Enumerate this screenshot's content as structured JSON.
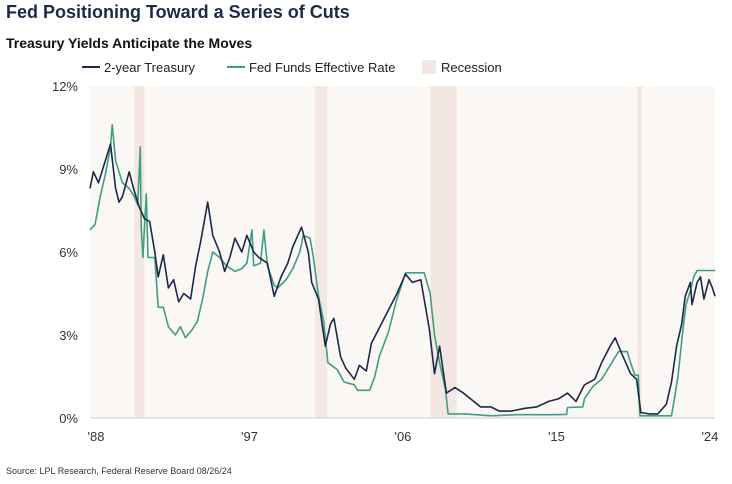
{
  "title": "Fed Positioning Toward a Series of Cuts",
  "subtitle": "Treasury Yields Anticipate the Moves",
  "source": "Source: LPL Research, Federal Reserve Board 08/26/24",
  "colors": {
    "treasury": "#1c2a4a",
    "fed_funds": "#3f9f82",
    "recession": "#f3e8e1",
    "plot_bg": "#fbf7f5"
  },
  "chart_data": {
    "type": "line",
    "title": "Fed Positioning Toward a Series of Cuts",
    "subtitle": "Treasury Yields Anticipate the Moves",
    "xlim": [
      1988,
      2024.65
    ],
    "ylim": [
      0,
      12
    ],
    "y_ticks": [
      {
        "value": 0,
        "label": "0%"
      },
      {
        "value": 3,
        "label": "3%"
      },
      {
        "value": 6,
        "label": "6%"
      },
      {
        "value": 9,
        "label": "9%"
      },
      {
        "value": 12,
        "label": "12%"
      }
    ],
    "x_ticks": [
      {
        "value": 1988,
        "label": "'88"
      },
      {
        "value": 1997,
        "label": "'97"
      },
      {
        "value": 2006,
        "label": "'06"
      },
      {
        "value": 2015,
        "label": "'15"
      },
      {
        "value": 2024,
        "label": "'24"
      }
    ],
    "grid": false,
    "legend": {
      "placement": "top",
      "items": [
        "2-year Treasury",
        "Fed Funds Effective Rate",
        "Recession"
      ]
    },
    "recessions": [
      [
        1990.6,
        1991.2
      ],
      [
        2001.2,
        2001.9
      ],
      [
        2007.95,
        2009.5
      ],
      [
        2020.1,
        2020.35
      ]
    ],
    "series": [
      {
        "name": "2-year Treasury",
        "points": [
          [
            1988.0,
            8.3
          ],
          [
            1988.2,
            8.9
          ],
          [
            1988.5,
            8.5
          ],
          [
            1988.8,
            9.1
          ],
          [
            1989.2,
            9.9
          ],
          [
            1989.5,
            8.3
          ],
          [
            1989.7,
            7.8
          ],
          [
            1989.9,
            8.0
          ],
          [
            1990.3,
            8.9
          ],
          [
            1990.6,
            8.2
          ],
          [
            1990.9,
            7.6
          ],
          [
            1991.2,
            7.2
          ],
          [
            1991.5,
            7.1
          ],
          [
            1991.8,
            6.0
          ],
          [
            1992.0,
            5.1
          ],
          [
            1992.3,
            5.9
          ],
          [
            1992.6,
            4.7
          ],
          [
            1992.9,
            5.0
          ],
          [
            1993.2,
            4.2
          ],
          [
            1993.5,
            4.5
          ],
          [
            1993.9,
            4.3
          ],
          [
            1994.2,
            5.5
          ],
          [
            1994.5,
            6.4
          ],
          [
            1994.9,
            7.8
          ],
          [
            1995.2,
            6.6
          ],
          [
            1995.6,
            6.0
          ],
          [
            1995.9,
            5.3
          ],
          [
            1996.2,
            5.8
          ],
          [
            1996.5,
            6.5
          ],
          [
            1996.9,
            6.0
          ],
          [
            1997.2,
            6.6
          ],
          [
            1997.6,
            6.0
          ],
          [
            1997.9,
            5.8
          ],
          [
            1998.4,
            5.6
          ],
          [
            1998.8,
            4.4
          ],
          [
            1999.2,
            5.1
          ],
          [
            1999.6,
            5.6
          ],
          [
            1999.9,
            6.2
          ],
          [
            2000.4,
            6.9
          ],
          [
            2000.8,
            6.0
          ],
          [
            2001.0,
            4.9
          ],
          [
            2001.4,
            4.3
          ],
          [
            2001.8,
            2.6
          ],
          [
            2002.1,
            3.4
          ],
          [
            2002.3,
            3.6
          ],
          [
            2002.7,
            2.2
          ],
          [
            2003.0,
            1.8
          ],
          [
            2003.5,
            1.4
          ],
          [
            2003.8,
            1.9
          ],
          [
            2004.2,
            1.7
          ],
          [
            2004.5,
            2.7
          ],
          [
            2005.0,
            3.3
          ],
          [
            2005.5,
            3.9
          ],
          [
            2006.0,
            4.5
          ],
          [
            2006.5,
            5.2
          ],
          [
            2006.9,
            4.9
          ],
          [
            2007.4,
            5.0
          ],
          [
            2007.9,
            3.2
          ],
          [
            2008.2,
            1.6
          ],
          [
            2008.5,
            2.6
          ],
          [
            2008.9,
            0.9
          ],
          [
            2009.4,
            1.1
          ],
          [
            2009.9,
            0.9
          ],
          [
            2010.5,
            0.6
          ],
          [
            2010.9,
            0.4
          ],
          [
            2011.5,
            0.4
          ],
          [
            2012.0,
            0.25
          ],
          [
            2012.7,
            0.25
          ],
          [
            2013.5,
            0.35
          ],
          [
            2014.2,
            0.4
          ],
          [
            2014.9,
            0.6
          ],
          [
            2015.5,
            0.7
          ],
          [
            2016.0,
            0.9
          ],
          [
            2016.5,
            0.6
          ],
          [
            2017.0,
            1.2
          ],
          [
            2017.6,
            1.4
          ],
          [
            2018.0,
            2.0
          ],
          [
            2018.5,
            2.6
          ],
          [
            2018.8,
            2.9
          ],
          [
            2019.2,
            2.3
          ],
          [
            2019.7,
            1.6
          ],
          [
            2020.05,
            1.4
          ],
          [
            2020.3,
            0.2
          ],
          [
            2020.8,
            0.15
          ],
          [
            2021.3,
            0.15
          ],
          [
            2021.8,
            0.5
          ],
          [
            2022.1,
            1.3
          ],
          [
            2022.4,
            2.6
          ],
          [
            2022.7,
            3.4
          ],
          [
            2022.9,
            4.4
          ],
          [
            2023.2,
            4.9
          ],
          [
            2023.3,
            4.1
          ],
          [
            2023.6,
            4.9
          ],
          [
            2023.8,
            5.1
          ],
          [
            2024.0,
            4.3
          ],
          [
            2024.3,
            5.0
          ],
          [
            2024.5,
            4.7
          ],
          [
            2024.65,
            4.4
          ]
        ]
      },
      {
        "name": "Fed Funds Effective Rate",
        "points": [
          [
            1988.0,
            6.8
          ],
          [
            1988.3,
            7.0
          ],
          [
            1988.6,
            8.0
          ],
          [
            1988.9,
            8.8
          ],
          [
            1989.2,
            9.8
          ],
          [
            1989.3,
            10.6
          ],
          [
            1989.5,
            9.3
          ],
          [
            1989.9,
            8.5
          ],
          [
            1990.3,
            8.3
          ],
          [
            1990.6,
            8.0
          ],
          [
            1990.8,
            7.7
          ],
          [
            1990.95,
            9.8
          ],
          [
            1991.0,
            6.9
          ],
          [
            1991.1,
            5.8
          ],
          [
            1991.3,
            8.1
          ],
          [
            1991.4,
            5.8
          ],
          [
            1991.8,
            5.8
          ],
          [
            1992.0,
            4.0
          ],
          [
            1992.3,
            4.0
          ],
          [
            1992.6,
            3.3
          ],
          [
            1993.0,
            3.0
          ],
          [
            1993.3,
            3.3
          ],
          [
            1993.6,
            2.9
          ],
          [
            1994.0,
            3.2
          ],
          [
            1994.3,
            3.5
          ],
          [
            1994.6,
            4.3
          ],
          [
            1994.9,
            5.3
          ],
          [
            1995.2,
            6.0
          ],
          [
            1995.6,
            5.8
          ],
          [
            1996.0,
            5.5
          ],
          [
            1996.5,
            5.3
          ],
          [
            1996.9,
            5.4
          ],
          [
            1997.2,
            5.6
          ],
          [
            1997.5,
            6.8
          ],
          [
            1997.6,
            5.5
          ],
          [
            1998.0,
            5.6
          ],
          [
            1998.2,
            6.8
          ],
          [
            1998.4,
            5.5
          ],
          [
            1998.8,
            4.8
          ],
          [
            1999.0,
            4.7
          ],
          [
            1999.5,
            5.0
          ],
          [
            1999.9,
            5.4
          ],
          [
            2000.3,
            6.0
          ],
          [
            2000.5,
            6.6
          ],
          [
            2000.9,
            6.5
          ],
          [
            2001.1,
            5.8
          ],
          [
            2001.4,
            4.4
          ],
          [
            2001.7,
            3.5
          ],
          [
            2001.95,
            2.0
          ],
          [
            2002.5,
            1.75
          ],
          [
            2002.9,
            1.3
          ],
          [
            2003.5,
            1.2
          ],
          [
            2003.7,
            1.0
          ],
          [
            2004.4,
            1.0
          ],
          [
            2004.7,
            1.5
          ],
          [
            2004.95,
            2.2
          ],
          [
            2005.5,
            3.1
          ],
          [
            2005.95,
            4.2
          ],
          [
            2006.5,
            5.25
          ],
          [
            2007.6,
            5.25
          ],
          [
            2007.95,
            4.5
          ],
          [
            2008.2,
            3.0
          ],
          [
            2008.5,
            2.0
          ],
          [
            2008.85,
            1.0
          ],
          [
            2009.0,
            0.15
          ],
          [
            2010.0,
            0.15
          ],
          [
            2011.5,
            0.08
          ],
          [
            2013.0,
            0.12
          ],
          [
            2015.0,
            0.12
          ],
          [
            2015.95,
            0.13
          ],
          [
            2016.0,
            0.38
          ],
          [
            2016.9,
            0.4
          ],
          [
            2017.0,
            0.7
          ],
          [
            2017.5,
            1.15
          ],
          [
            2018.0,
            1.4
          ],
          [
            2018.5,
            1.9
          ],
          [
            2019.0,
            2.4
          ],
          [
            2019.5,
            2.4
          ],
          [
            2019.7,
            2.0
          ],
          [
            2019.95,
            1.55
          ],
          [
            2020.15,
            1.55
          ],
          [
            2020.25,
            0.08
          ],
          [
            2022.1,
            0.08
          ],
          [
            2022.3,
            0.8
          ],
          [
            2022.5,
            1.6
          ],
          [
            2022.75,
            3.1
          ],
          [
            2022.95,
            4.1
          ],
          [
            2023.2,
            4.6
          ],
          [
            2023.4,
            5.1
          ],
          [
            2023.6,
            5.33
          ],
          [
            2024.65,
            5.33
          ]
        ]
      }
    ]
  }
}
